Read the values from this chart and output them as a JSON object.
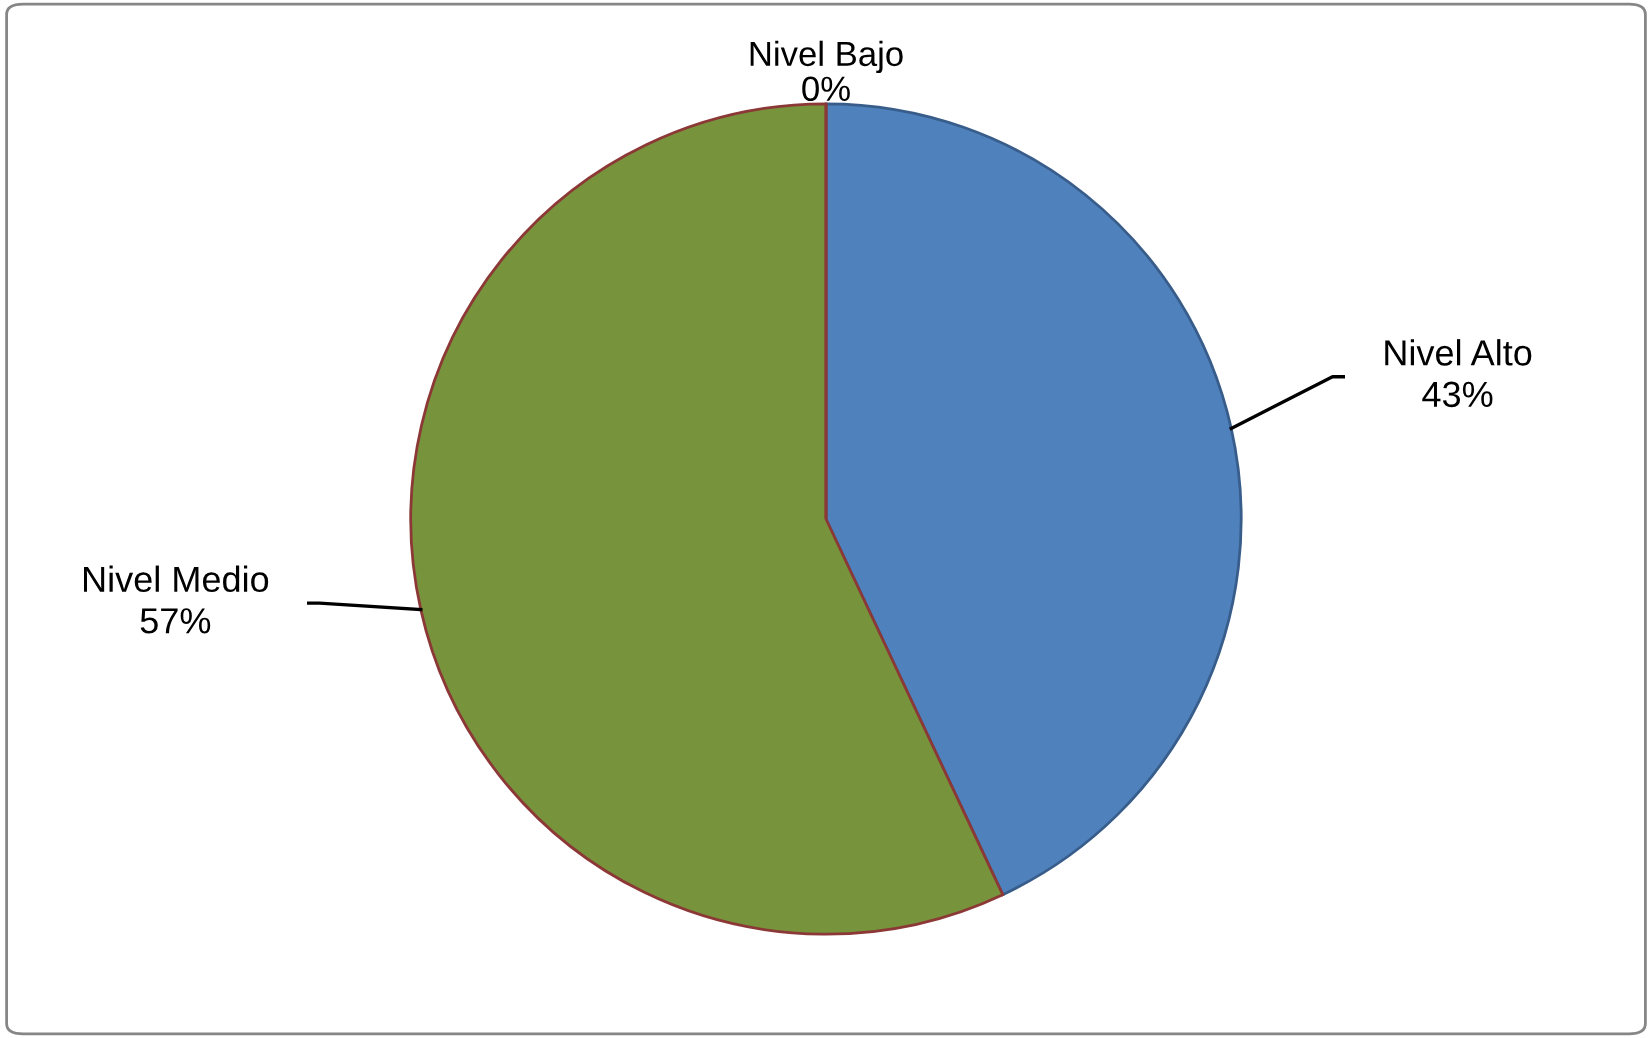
{
  "chart_data": {
    "type": "pie",
    "categories": [
      "Nivel Alto",
      "Nivel Medio",
      "Nivel Bajo"
    ],
    "values": [
      43,
      57,
      0
    ],
    "colors": [
      "#4f81bd",
      "#77933c",
      "#c0504d"
    ],
    "value_labels": [
      "43%",
      "57%",
      "0%"
    ],
    "legend": false
  }
}
